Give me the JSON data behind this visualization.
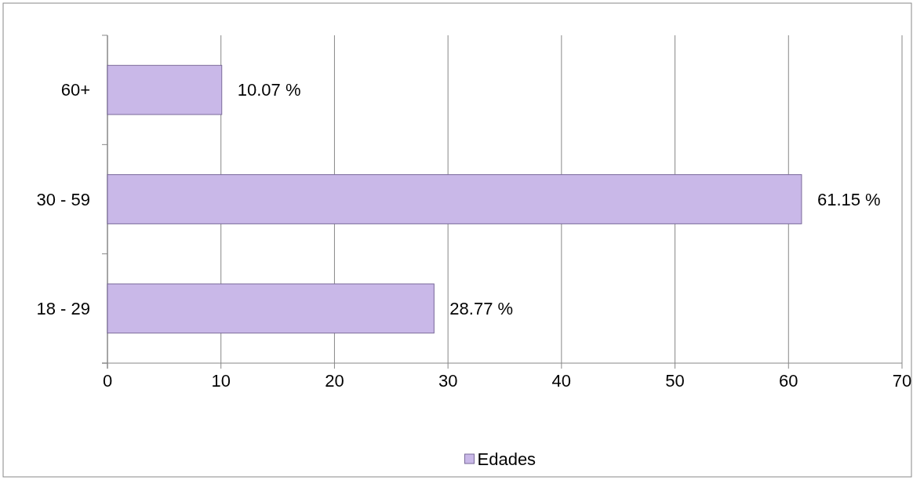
{
  "chart_data": {
    "type": "bar",
    "orientation": "horizontal",
    "categories": [
      "60+",
      "30 - 59",
      "18 - 29"
    ],
    "series": [
      {
        "name": "Edades",
        "color": "#c9b8e8",
        "values": [
          10.07,
          61.15,
          28.77
        ],
        "value_labels": [
          "10.07 %",
          "61.15 %",
          "28.77 %"
        ]
      }
    ],
    "xlim": [
      0,
      70
    ],
    "xticks": [
      0,
      10,
      20,
      30,
      40,
      50,
      60,
      70
    ],
    "grid": "x",
    "legend": "bottom"
  }
}
